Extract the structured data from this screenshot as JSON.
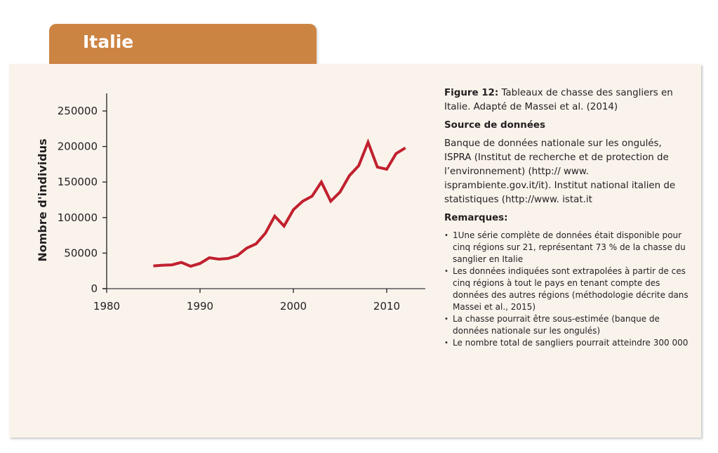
{
  "header": {
    "title": "Italie",
    "accent_color": "#cc8443"
  },
  "chart_data": {
    "type": "line",
    "title": "",
    "xlabel": "",
    "ylabel": "Nombre d'individus",
    "xlim": [
      1980,
      2014
    ],
    "ylim": [
      0,
      260000
    ],
    "xticks": [
      1980,
      1990,
      2000,
      2010
    ],
    "yticks": [
      0,
      50000,
      100000,
      150000,
      200000,
      250000
    ],
    "grid": false,
    "legend": "none",
    "line_color": "#c1202e",
    "series": [
      {
        "name": "Tableaux de chasse des sangliers",
        "x": [
          1985,
          1986,
          1987,
          1988,
          1989,
          1990,
          1991,
          1992,
          1993,
          1994,
          1995,
          1996,
          1997,
          1998,
          1999,
          2000,
          2001,
          2002,
          2003,
          2004,
          2005,
          2006,
          2007,
          2008,
          2009,
          2010,
          2011,
          2012
        ],
        "values": [
          32000,
          33000,
          33500,
          37000,
          31500,
          35500,
          43500,
          41500,
          42500,
          46500,
          57000,
          63000,
          78000,
          102000,
          88000,
          111000,
          123000,
          130000,
          150000,
          123000,
          136000,
          159000,
          173000,
          206000,
          171000,
          168000,
          190000,
          198000
        ]
      }
    ]
  },
  "side": {
    "figure_label": "Figure 12:",
    "figure_caption": " Tableaux de chasse des sangliers en Italie. Adapté de Massei et al. (2014)",
    "source_heading": "Source de données",
    "source_text": "Banque de données nationale sur les ongulés, ISPRA (Institut de recherche et de protection de l’environnement) (http:// www. isprambiente.gov.it/it). Institut national italien de statistiques (http://www. istat.it",
    "remarks_heading": "Remarques:",
    "remarks": [
      "1Une série complète de données était disponible pour cinq régions sur 21, représentant 73 % de la chasse du sanglier en Italie",
      "Les données indiquées sont extrapolées à partir de ces cinq régions à tout le pays en tenant compte des données des autres régions (méthodologie décrite dans Massei et al., 2015)",
      "La chasse pourrait être sous-estimée (banque de données nationale sur les ongulés)",
      "Le nombre total de sangliers pourrait atteindre 300 000"
    ]
  }
}
